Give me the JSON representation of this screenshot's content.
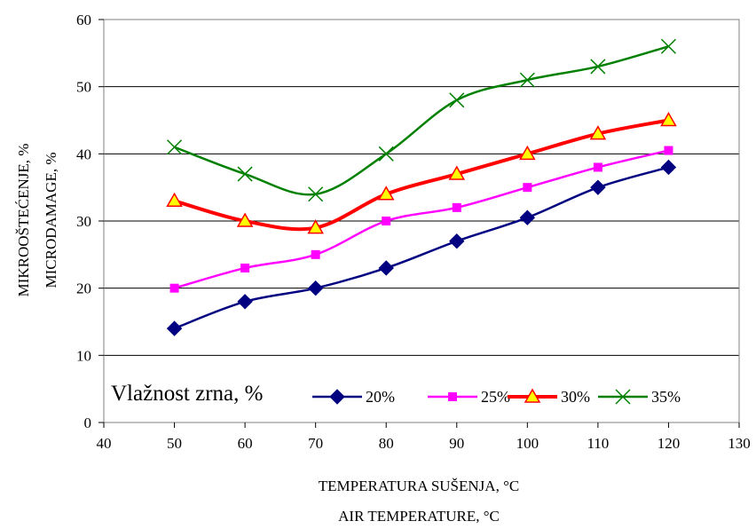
{
  "chart_data": {
    "type": "line",
    "xlabel_lines": [
      "TEMPERATURA SUŠENJA, °C",
      "AIR TEMPERATURE, °C"
    ],
    "ylabel_lines": [
      "MIKROOŠTEĆENJE, %",
      "MICRODAMAGE, %"
    ],
    "xlim": [
      40,
      130
    ],
    "ylim": [
      0,
      60
    ],
    "xticks": [
      "40",
      "50",
      "60",
      "70",
      "80",
      "90",
      "100",
      "110",
      "120",
      "130"
    ],
    "yticks": [
      "0",
      "10",
      "20",
      "30",
      "40",
      "50",
      "60"
    ],
    "grid": "horizontal",
    "legend_title": "Vlažnost zrna, %",
    "legend_position": "bottom-inside",
    "x": [
      50,
      60,
      70,
      80,
      90,
      100,
      110,
      120
    ],
    "series": [
      {
        "name": "20%",
        "values": [
          14,
          18,
          20,
          23,
          27,
          30.5,
          35,
          38
        ],
        "color": "#000080",
        "marker": "diamond"
      },
      {
        "name": "25%",
        "values": [
          20,
          23,
          25,
          30,
          32,
          35,
          38,
          40.5
        ],
        "color": "#ff00ff",
        "marker": "square"
      },
      {
        "name": "30%",
        "values": [
          33,
          30,
          29,
          34,
          37,
          40,
          43,
          45
        ],
        "color": "#ff0000",
        "marker": "triangle"
      },
      {
        "name": "35%",
        "values": [
          41,
          37,
          34,
          40,
          48,
          51,
          53,
          56
        ],
        "color": "#008000",
        "marker": "x"
      }
    ]
  }
}
